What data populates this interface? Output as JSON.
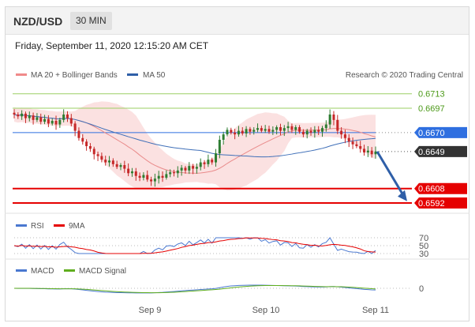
{
  "header": {
    "pair": "NZD/USD",
    "timeframe": "30 MIN"
  },
  "datetime": "Friday, September 11, 2020 12:15:20 AM CET",
  "legend": {
    "bollinger": "MA 20 + Bollinger Bands",
    "ma50": "MA 50",
    "credit": "Research © 2020 Trading Central"
  },
  "rsi_legend": {
    "rsi": "RSI",
    "ma": "9MA"
  },
  "macd_legend": {
    "macd": "MACD",
    "signal": "MACD Signal"
  },
  "colors": {
    "up": "#2e7d32",
    "down": "#c62828",
    "ma50": "#3f6fb8",
    "band": "#f8c9c9",
    "ma20": "#e98b8b",
    "resistance": "#9bcf63",
    "support": "#e50000",
    "pivot": "#2f6fe0",
    "last": "#333333"
  },
  "chart_data": [
    {
      "type": "candlestick",
      "x_ticks": [
        "Sep 9",
        "Sep 10",
        "Sep 11"
      ],
      "levels": [
        {
          "label": "0.6713",
          "value": 0.6713,
          "kind": "resistance"
        },
        {
          "label": "0.6697",
          "value": 0.6697,
          "kind": "resistance"
        },
        {
          "label": "0.6670",
          "value": 0.667,
          "kind": "pivot"
        },
        {
          "label": "0.6649",
          "value": 0.6649,
          "kind": "last"
        },
        {
          "label": "0.6608",
          "value": 0.6608,
          "kind": "support"
        },
        {
          "label": "0.6592",
          "value": 0.6592,
          "kind": "support"
        }
      ],
      "ylim": [
        0.6585,
        0.6718
      ],
      "close": [
        0.669,
        0.6688,
        0.6691,
        0.6686,
        0.6689,
        0.6684,
        0.6687,
        0.6682,
        0.6685,
        0.668,
        0.6683,
        0.6679,
        0.6684,
        0.669,
        0.6686,
        0.668,
        0.6672,
        0.6664,
        0.666,
        0.6655,
        0.6652,
        0.6646,
        0.6644,
        0.664,
        0.6637,
        0.6639,
        0.6635,
        0.6632,
        0.6634,
        0.663,
        0.6625,
        0.6627,
        0.6622,
        0.662,
        0.6623,
        0.6618,
        0.6616,
        0.6619,
        0.6622,
        0.662,
        0.6624,
        0.6626,
        0.6625,
        0.6628,
        0.6631,
        0.6628,
        0.6633,
        0.663,
        0.6632,
        0.6637,
        0.6635,
        0.664,
        0.6637,
        0.6647,
        0.6662,
        0.6668,
        0.6673,
        0.667,
        0.6668,
        0.6672,
        0.6669,
        0.6674,
        0.6671,
        0.6673,
        0.6675,
        0.6672,
        0.6674,
        0.6671,
        0.6673,
        0.6676,
        0.6672,
        0.6675,
        0.6677,
        0.6673,
        0.6676,
        0.6671,
        0.6668,
        0.6672,
        0.667,
        0.6673,
        0.6671,
        0.6675,
        0.6679,
        0.669,
        0.6684,
        0.6672,
        0.6668,
        0.6664,
        0.666,
        0.6657,
        0.6655,
        0.6652,
        0.6648,
        0.665,
        0.6646,
        0.6649
      ],
      "rsi_levels": [
        70,
        50,
        30
      ],
      "macd_levels": [
        0
      ]
    }
  ]
}
